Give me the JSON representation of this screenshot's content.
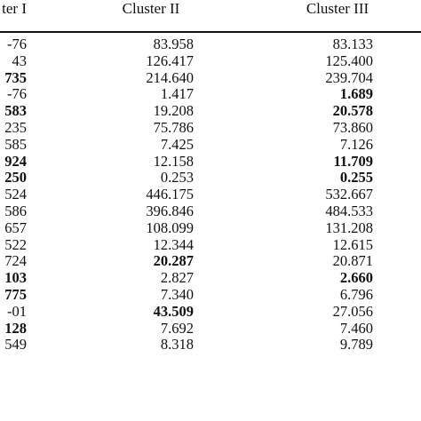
{
  "table": {
    "headers": [
      "ter I",
      "Cluster II",
      "Cluster III"
    ],
    "rows": [
      [
        {
          "v": "-76",
          "b": false
        },
        {
          "v": "83.958",
          "b": false
        },
        {
          "v": "83.133",
          "b": false
        }
      ],
      [
        {
          "v": "43",
          "b": false
        },
        {
          "v": "126.417",
          "b": false
        },
        {
          "v": "125.400",
          "b": false
        }
      ],
      [
        {
          "v": "735",
          "b": true
        },
        {
          "v": "214.640",
          "b": false
        },
        {
          "v": "239.704",
          "b": false
        }
      ],
      [
        {
          "v": "-76",
          "b": false
        },
        {
          "v": "1.417",
          "b": false
        },
        {
          "v": "1.689",
          "b": true
        }
      ],
      [
        {
          "v": "583",
          "b": true
        },
        {
          "v": "19.208",
          "b": false
        },
        {
          "v": "20.578",
          "b": true
        }
      ],
      [
        {
          "v": "235",
          "b": false
        },
        {
          "v": "75.786",
          "b": false
        },
        {
          "v": "73.860",
          "b": false
        }
      ],
      [
        {
          "v": "585",
          "b": false
        },
        {
          "v": "7.425",
          "b": false
        },
        {
          "v": "7.126",
          "b": false
        }
      ],
      [
        {
          "v": "924",
          "b": true
        },
        {
          "v": "12.158",
          "b": false
        },
        {
          "v": "11.709",
          "b": true
        }
      ],
      [
        {
          "v": "250",
          "b": true
        },
        {
          "v": "0.253",
          "b": false
        },
        {
          "v": "0.255",
          "b": true
        }
      ],
      [
        {
          "v": "524",
          "b": false
        },
        {
          "v": "446.175",
          "b": false
        },
        {
          "v": "532.667",
          "b": false
        }
      ],
      [
        {
          "v": "586",
          "b": false
        },
        {
          "v": "396.846",
          "b": false
        },
        {
          "v": "484.533",
          "b": false
        }
      ],
      [
        {
          "v": "657",
          "b": false
        },
        {
          "v": "108.099",
          "b": false
        },
        {
          "v": "131.208",
          "b": false
        }
      ],
      [
        {
          "v": "522",
          "b": false
        },
        {
          "v": "12.344",
          "b": false
        },
        {
          "v": "12.615",
          "b": false
        }
      ],
      [
        {
          "v": "724",
          "b": false
        },
        {
          "v": "20.287",
          "b": true
        },
        {
          "v": "20.871",
          "b": false
        }
      ],
      [
        {
          "v": "103",
          "b": true
        },
        {
          "v": "2.827",
          "b": false
        },
        {
          "v": "2.660",
          "b": true
        }
      ],
      [
        {
          "v": "775",
          "b": true
        },
        {
          "v": "7.340",
          "b": false
        },
        {
          "v": "6.796",
          "b": false
        }
      ],
      [
        {
          "v": "-01",
          "b": false
        },
        {
          "v": "43.509",
          "b": true
        },
        {
          "v": "27.056",
          "b": false
        }
      ],
      [
        {
          "v": "128",
          "b": true
        },
        {
          "v": "7.692",
          "b": false
        },
        {
          "v": "7.460",
          "b": false
        }
      ],
      [
        {
          "v": "549",
          "b": false
        },
        {
          "v": "8.318",
          "b": false
        },
        {
          "v": "9.789",
          "b": false
        }
      ]
    ]
  }
}
